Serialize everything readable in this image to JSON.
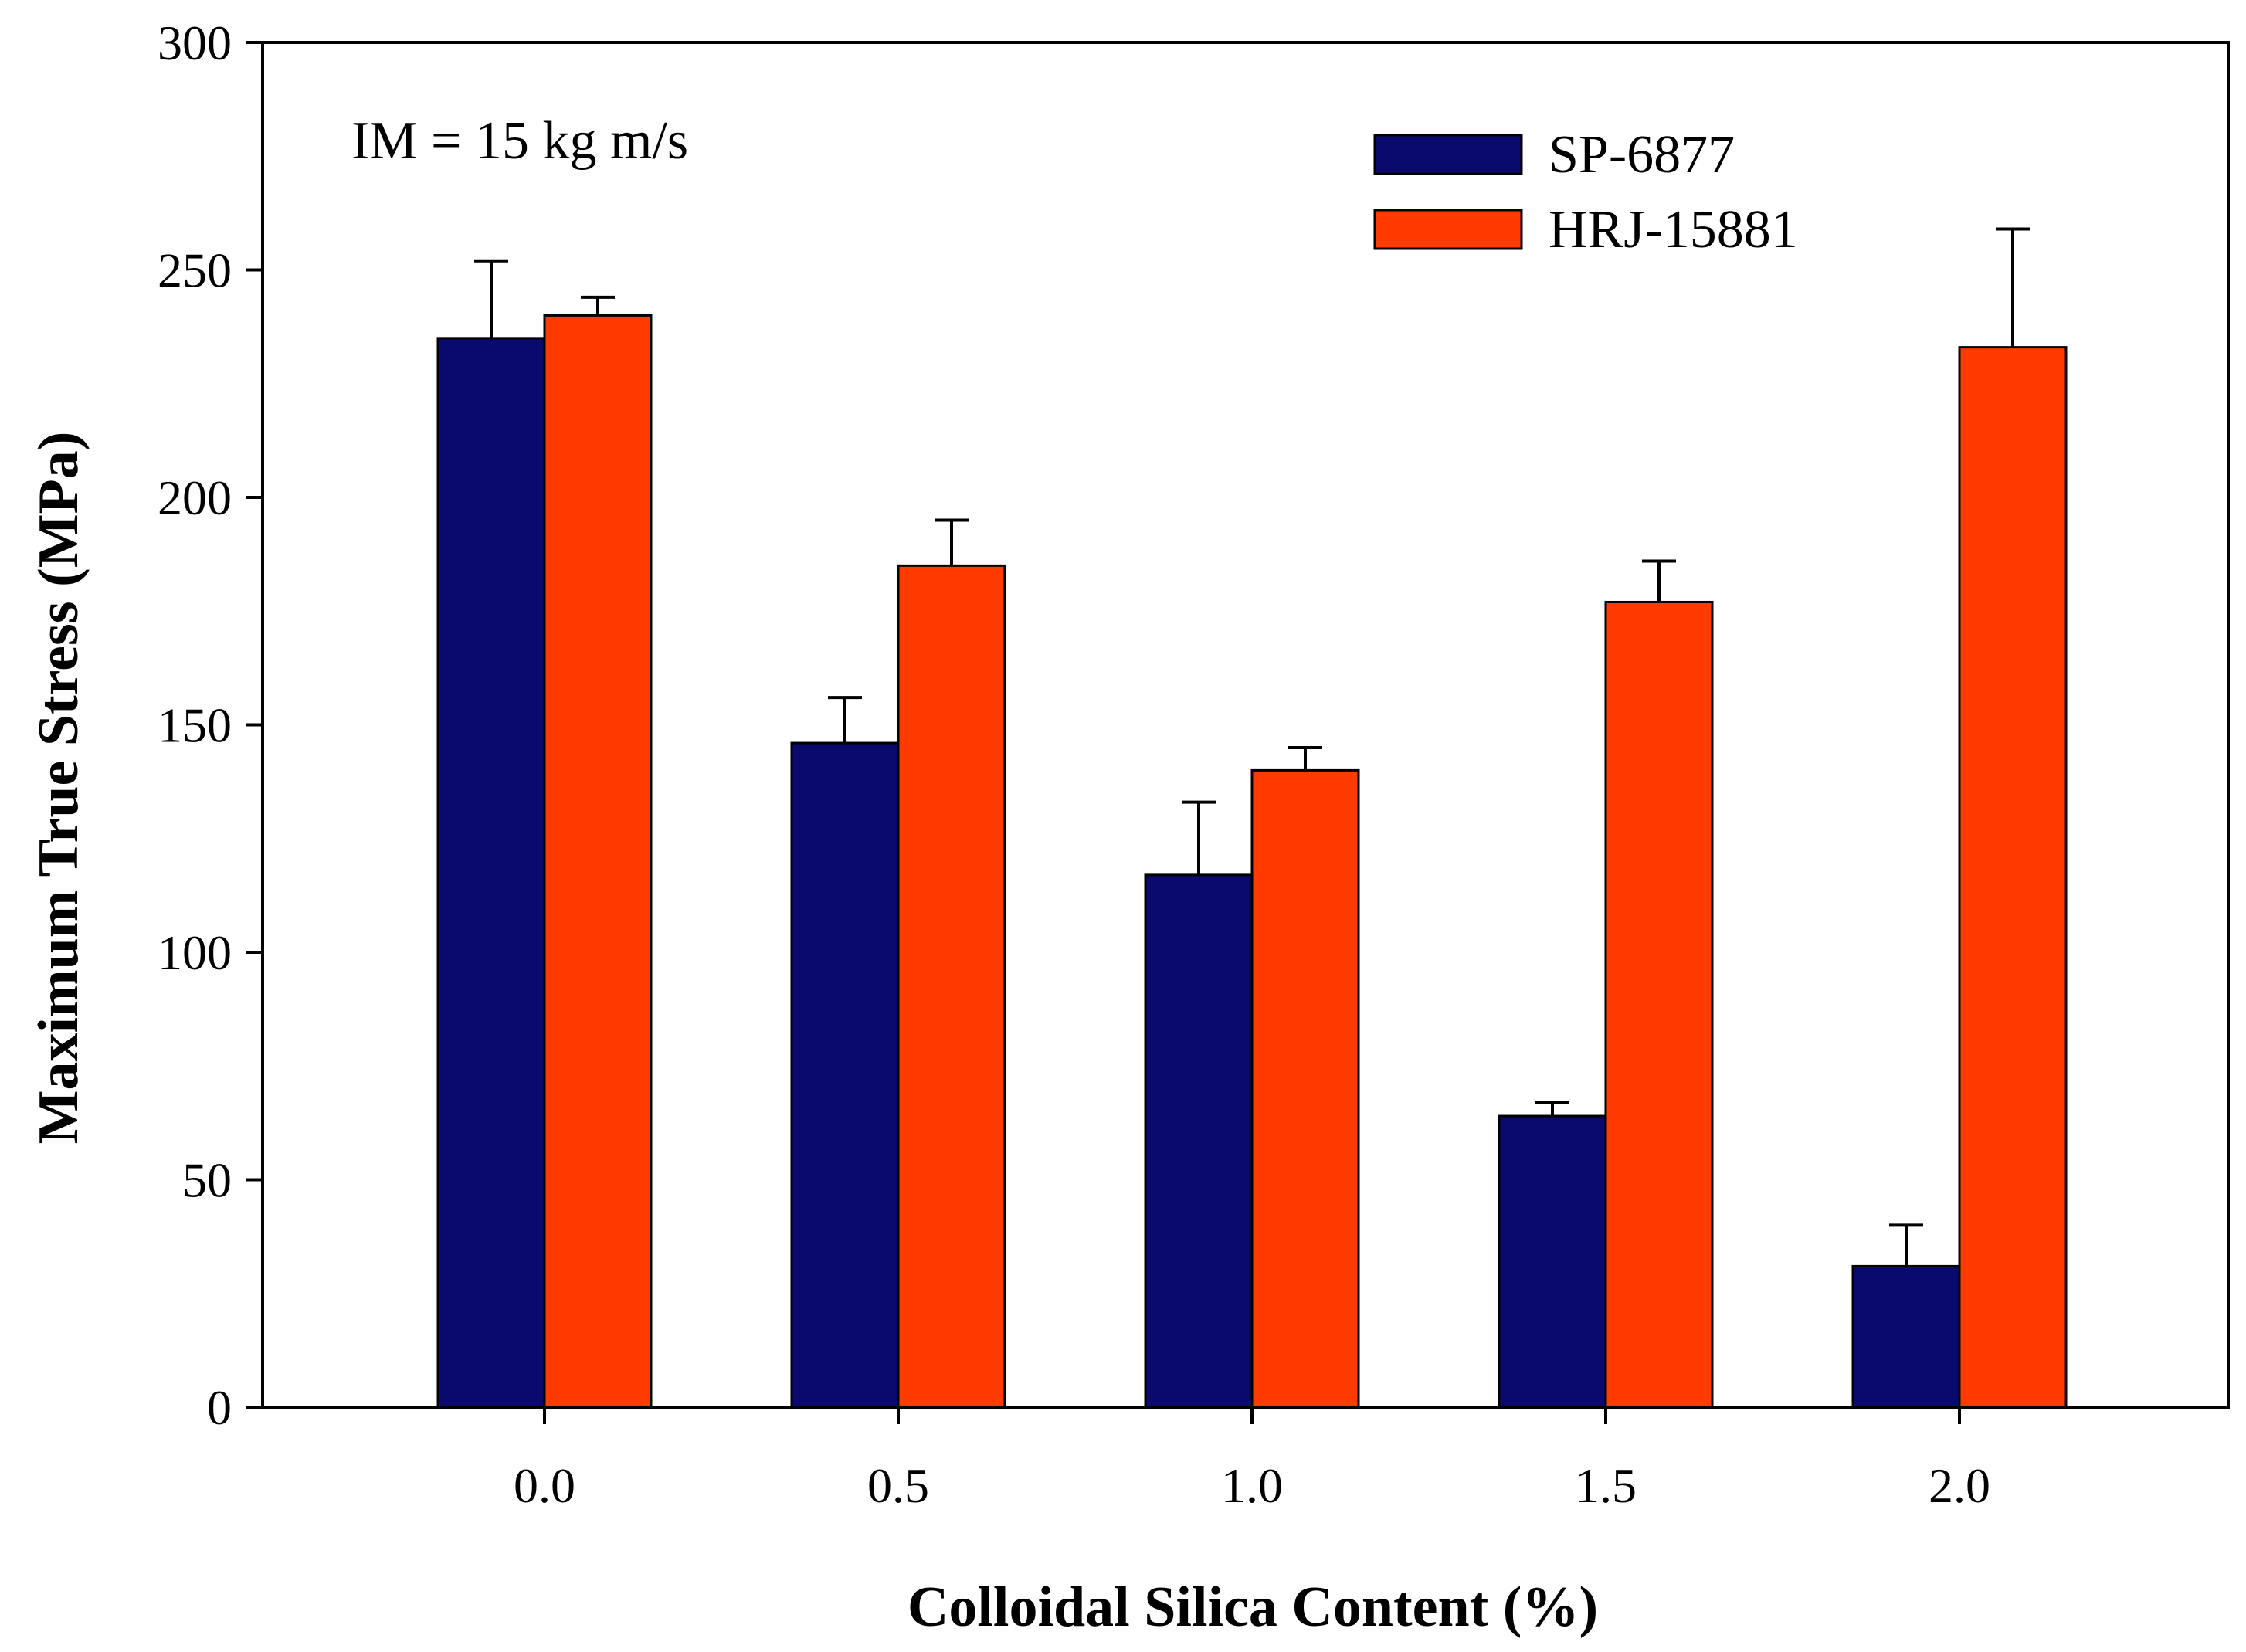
{
  "chart_data": {
    "type": "bar",
    "title": "",
    "annotation": "IM = 15 kg m/s",
    "xlabel": "Colloidal Silica Content (%)",
    "ylabel": "Maximum True Stress (MPa)",
    "ylim": [
      0,
      300
    ],
    "yticks": [
      "0",
      "50",
      "100",
      "150",
      "200",
      "250",
      "300"
    ],
    "categories": [
      "0.0",
      "0.5",
      "1.0",
      "1.5",
      "2.0"
    ],
    "legend_position": "top-right",
    "grid": false,
    "series": [
      {
        "name": "SP-6877",
        "color": "#0a0a6e",
        "values": [
          235,
          146,
          117,
          64,
          31
        ],
        "errors": [
          17,
          10,
          16,
          3,
          9
        ]
      },
      {
        "name": "HRJ-15881",
        "color": "#ff3b00",
        "values": [
          240,
          185,
          140,
          177,
          233
        ],
        "errors": [
          4,
          10,
          5,
          9,
          26
        ]
      }
    ]
  }
}
